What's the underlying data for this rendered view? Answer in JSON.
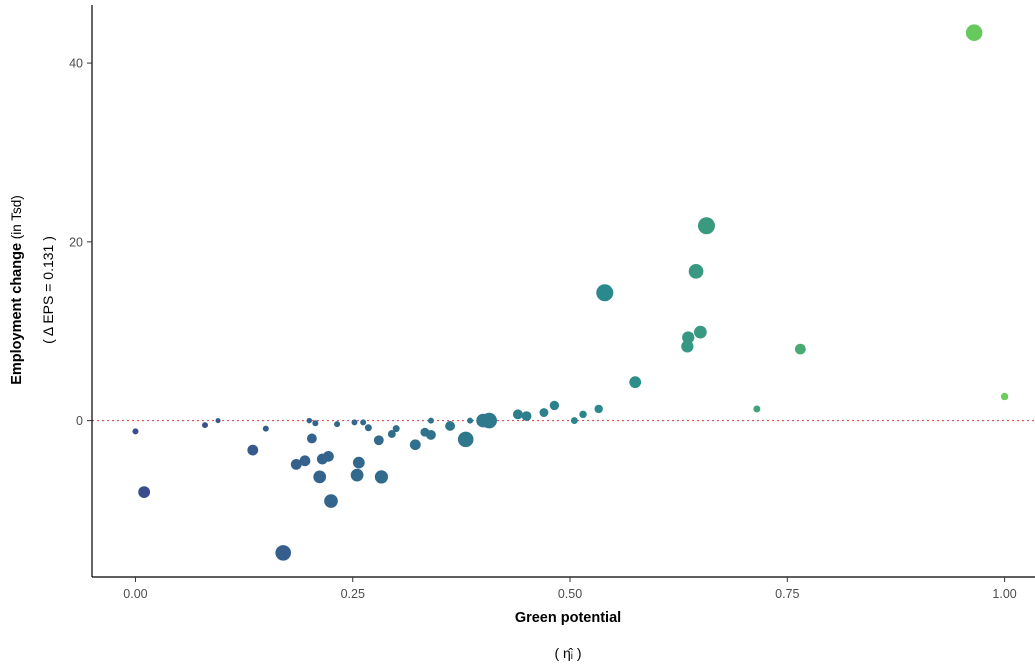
{
  "chart_data": {
    "type": "scatter",
    "title": "",
    "xlabel": "Green potential",
    "xlabel_sub": "( η̂ᵢ )",
    "ylabel_bold": "Employment change",
    "ylabel_rest": " (in Tsd)",
    "ylabel_sub": "( Δ EPS = 0.131 )",
    "xlim": [
      -0.05,
      1.035
    ],
    "ylim": [
      -17.5,
      46.5
    ],
    "x_ticks": [
      0.0,
      0.25,
      0.5,
      0.75,
      1.0
    ],
    "x_tick_labels": [
      "0.00",
      "0.25",
      "0.50",
      "0.75",
      "1.00"
    ],
    "y_ticks": [
      0,
      20,
      40
    ],
    "y_tick_labels": [
      "0",
      "20",
      "40"
    ],
    "reference_line": {
      "y": 0,
      "style": "dotted",
      "color": "#e05555"
    },
    "grid": false,
    "legend": "none",
    "color_scale": {
      "low": "#3b4b8c",
      "mid": "#2a8a8c",
      "high": "#6ccd5a"
    },
    "points": [
      {
        "x": 0.0,
        "y": -1.2,
        "size": 1.0
      },
      {
        "x": 0.01,
        "y": -8.0,
        "size": 2.2
      },
      {
        "x": 0.08,
        "y": -0.5,
        "size": 1.0
      },
      {
        "x": 0.095,
        "y": 0.0,
        "size": 0.8
      },
      {
        "x": 0.135,
        "y": -3.3,
        "size": 2.0
      },
      {
        "x": 0.15,
        "y": -0.9,
        "size": 1.0
      },
      {
        "x": 0.17,
        "y": -14.8,
        "size": 3.0
      },
      {
        "x": 0.185,
        "y": -4.9,
        "size": 2.0
      },
      {
        "x": 0.195,
        "y": -4.5,
        "size": 2.0
      },
      {
        "x": 0.2,
        "y": 0.0,
        "size": 0.9
      },
      {
        "x": 0.203,
        "y": -2.0,
        "size": 1.8
      },
      {
        "x": 0.207,
        "y": -0.3,
        "size": 1.0
      },
      {
        "x": 0.212,
        "y": -6.3,
        "size": 2.4
      },
      {
        "x": 0.215,
        "y": -4.3,
        "size": 2.0
      },
      {
        "x": 0.222,
        "y": -4.0,
        "size": 2.0
      },
      {
        "x": 0.225,
        "y": -9.0,
        "size": 2.6
      },
      {
        "x": 0.232,
        "y": -0.4,
        "size": 1.0
      },
      {
        "x": 0.252,
        "y": -0.2,
        "size": 1.0
      },
      {
        "x": 0.255,
        "y": -6.1,
        "size": 2.4
      },
      {
        "x": 0.257,
        "y": -4.7,
        "size": 2.2
      },
      {
        "x": 0.262,
        "y": -0.2,
        "size": 1.0
      },
      {
        "x": 0.268,
        "y": -0.8,
        "size": 1.2
      },
      {
        "x": 0.28,
        "y": -2.2,
        "size": 1.8
      },
      {
        "x": 0.283,
        "y": -6.3,
        "size": 2.5
      },
      {
        "x": 0.295,
        "y": -1.5,
        "size": 1.4
      },
      {
        "x": 0.3,
        "y": -0.9,
        "size": 1.2
      },
      {
        "x": 0.322,
        "y": -2.7,
        "size": 2.0
      },
      {
        "x": 0.333,
        "y": -1.3,
        "size": 1.6
      },
      {
        "x": 0.34,
        "y": -1.6,
        "size": 1.8
      },
      {
        "x": 0.34,
        "y": 0.0,
        "size": 1.0
      },
      {
        "x": 0.362,
        "y": -0.6,
        "size": 1.8
      },
      {
        "x": 0.38,
        "y": -2.1,
        "size": 3.0
      },
      {
        "x": 0.385,
        "y": 0.0,
        "size": 1.0
      },
      {
        "x": 0.4,
        "y": 0.0,
        "size": 2.6
      },
      {
        "x": 0.407,
        "y": 0.0,
        "size": 3.0
      },
      {
        "x": 0.44,
        "y": 0.7,
        "size": 1.8
      },
      {
        "x": 0.45,
        "y": 0.5,
        "size": 1.8
      },
      {
        "x": 0.47,
        "y": 0.9,
        "size": 1.6
      },
      {
        "x": 0.482,
        "y": 1.7,
        "size": 1.7
      },
      {
        "x": 0.505,
        "y": 0.0,
        "size": 1.2
      },
      {
        "x": 0.515,
        "y": 0.7,
        "size": 1.3
      },
      {
        "x": 0.533,
        "y": 1.3,
        "size": 1.5
      },
      {
        "x": 0.54,
        "y": 14.3,
        "size": 3.3
      },
      {
        "x": 0.575,
        "y": 4.3,
        "size": 2.2
      },
      {
        "x": 0.635,
        "y": 8.3,
        "size": 2.3
      },
      {
        "x": 0.636,
        "y": 9.3,
        "size": 2.3
      },
      {
        "x": 0.645,
        "y": 16.7,
        "size": 2.8
      },
      {
        "x": 0.65,
        "y": 9.9,
        "size": 2.4
      },
      {
        "x": 0.657,
        "y": 21.8,
        "size": 3.3
      },
      {
        "x": 0.715,
        "y": 1.3,
        "size": 1.2
      },
      {
        "x": 0.765,
        "y": 8.0,
        "size": 2.0
      },
      {
        "x": 0.965,
        "y": 43.4,
        "size": 3.2
      },
      {
        "x": 1.0,
        "y": 2.7,
        "size": 1.3
      }
    ]
  }
}
